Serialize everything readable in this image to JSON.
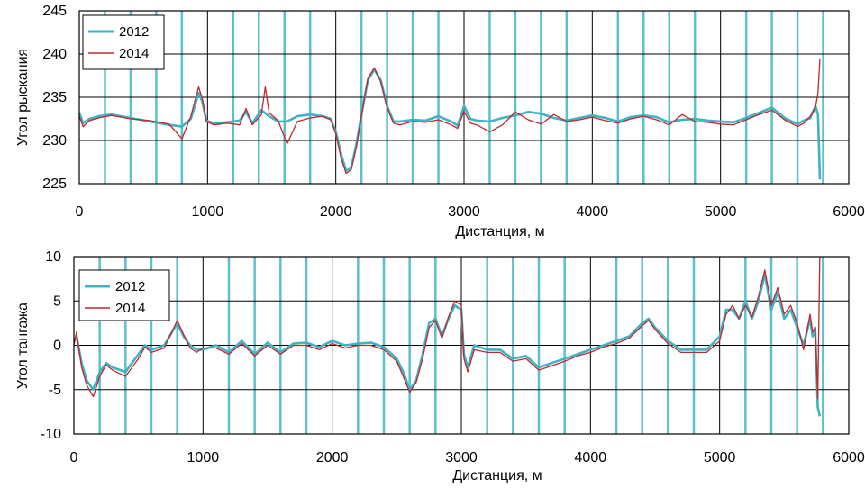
{
  "chart_data": [
    {
      "type": "line",
      "xlabel": "Дистанция, м",
      "ylabel": "Угол рыскания",
      "xlim": [
        0,
        6000
      ],
      "ylim": [
        225,
        245
      ],
      "xticks": [
        "0",
        "1000",
        "2000",
        "3000",
        "4000",
        "5000",
        "6000"
      ],
      "yticks": [
        "225",
        "230",
        "235",
        "240",
        "245"
      ],
      "grid": true,
      "legend_position": "top-left",
      "series": [
        {
          "name": "2012",
          "color": "#3fb3c3",
          "x": [
            0,
            30,
            80,
            150,
            250,
            400,
            550,
            700,
            800,
            870,
            930,
            960,
            990,
            1050,
            1150,
            1250,
            1300,
            1350,
            1420,
            1480,
            1550,
            1620,
            1700,
            1800,
            1900,
            1960,
            2000,
            2040,
            2080,
            2120,
            2160,
            2200,
            2250,
            2300,
            2350,
            2400,
            2450,
            2500,
            2600,
            2700,
            2800,
            2900,
            2950,
            3000,
            3050,
            3100,
            3200,
            3300,
            3400,
            3500,
            3600,
            3700,
            3800,
            3900,
            4000,
            4100,
            4200,
            4300,
            4400,
            4500,
            4600,
            4700,
            4800,
            4900,
            5000,
            5100,
            5200,
            5300,
            5400,
            5500,
            5600,
            5650,
            5700,
            5740,
            5760,
            5775
          ],
          "values": [
            233.2,
            232,
            232.5,
            232.8,
            233,
            232.6,
            232.2,
            231.8,
            231.6,
            232.5,
            235.5,
            234.5,
            232.3,
            232,
            232.1,
            232.3,
            233.3,
            232,
            233.5,
            232.8,
            232.2,
            232.2,
            232.8,
            233,
            232.8,
            232.5,
            231,
            228.5,
            226.5,
            226.8,
            229.5,
            233,
            237,
            238.2,
            237,
            234,
            232.2,
            232.2,
            232.4,
            232.3,
            232.8,
            232.2,
            231.7,
            234,
            232.5,
            232.3,
            232.2,
            232.6,
            232.9,
            233.3,
            233.1,
            232.6,
            232.3,
            232.6,
            232.9,
            232.6,
            232.2,
            232.7,
            232.9,
            232.7,
            232.1,
            232.4,
            232.5,
            232.3,
            232.2,
            232.1,
            232.6,
            233.2,
            233.8,
            232.6,
            231.9,
            232.3,
            232.6,
            234,
            233,
            225.5
          ]
        },
        {
          "name": "2014",
          "color": "#c0282d",
          "x": [
            0,
            30,
            80,
            150,
            250,
            400,
            550,
            700,
            800,
            870,
            930,
            960,
            990,
            1050,
            1150,
            1250,
            1300,
            1350,
            1420,
            1450,
            1480,
            1550,
            1620,
            1700,
            1800,
            1900,
            1960,
            2000,
            2040,
            2080,
            2120,
            2160,
            2200,
            2250,
            2300,
            2350,
            2400,
            2450,
            2500,
            2600,
            2700,
            2800,
            2900,
            2950,
            3000,
            3050,
            3100,
            3200,
            3300,
            3400,
            3500,
            3600,
            3700,
            3800,
            3900,
            4000,
            4100,
            4200,
            4300,
            4400,
            4500,
            4600,
            4700,
            4800,
            4900,
            5000,
            5100,
            5200,
            5300,
            5400,
            5500,
            5600,
            5650,
            5700,
            5740,
            5760,
            5775
          ],
          "values": [
            232.8,
            231.6,
            232.3,
            232.6,
            232.9,
            232.5,
            232.3,
            231.9,
            230.2,
            232.8,
            236.2,
            234.8,
            232.2,
            231.8,
            232,
            231.8,
            233.7,
            231.8,
            233,
            236.2,
            233.2,
            232.3,
            229.6,
            232.2,
            232.6,
            232.8,
            232.4,
            230.8,
            228,
            226.2,
            226.6,
            229.2,
            232.8,
            237.2,
            238.4,
            236.8,
            233.8,
            232,
            231.8,
            232.2,
            232.1,
            232.4,
            231.8,
            231.4,
            233.4,
            232,
            231.8,
            231,
            231.8,
            233.3,
            232.4,
            231.9,
            233,
            232.2,
            232.4,
            232.7,
            232.3,
            232,
            232.5,
            232.8,
            232.4,
            231.8,
            233,
            232.2,
            232.1,
            231.9,
            231.8,
            232.4,
            233,
            233.5,
            232.4,
            231.6,
            232,
            232.8,
            233.8,
            235.5,
            239.5
          ]
        }
      ]
    },
    {
      "type": "line",
      "xlabel": "Дистанция, м",
      "ylabel": "Угол тангажа",
      "xlim": [
        0,
        6000
      ],
      "ylim": [
        -10,
        10
      ],
      "xticks": [
        "0",
        "1000",
        "2000",
        "3000",
        "4000",
        "5000",
        "6000"
      ],
      "yticks": [
        "-10",
        "-5",
        "0",
        "5",
        "10"
      ],
      "grid": true,
      "legend_position": "top-left",
      "series": [
        {
          "name": "2012",
          "color": "#3fb3c3",
          "x": [
            0,
            20,
            60,
            100,
            150,
            200,
            250,
            300,
            400,
            500,
            550,
            600,
            700,
            800,
            850,
            900,
            950,
            1000,
            1100,
            1200,
            1300,
            1400,
            1500,
            1600,
            1700,
            1800,
            1900,
            2000,
            2100,
            2200,
            2300,
            2400,
            2500,
            2550,
            2600,
            2650,
            2700,
            2750,
            2800,
            2850,
            2900,
            2950,
            3000,
            3020,
            3050,
            3100,
            3200,
            3300,
            3400,
            3500,
            3600,
            3700,
            3800,
            3900,
            4000,
            4100,
            4200,
            4300,
            4400,
            4450,
            4500,
            4600,
            4700,
            4800,
            4900,
            5000,
            5050,
            5100,
            5150,
            5200,
            5250,
            5300,
            5350,
            5400,
            5450,
            5500,
            5550,
            5600,
            5650,
            5700,
            5720,
            5740,
            5760,
            5775
          ],
          "values": [
            0.5,
            1,
            -2,
            -4,
            -5,
            -3,
            -2,
            -2.5,
            -3,
            -1,
            0,
            -0.5,
            0,
            2.5,
            1,
            0,
            -0.5,
            -0.5,
            0,
            -0.8,
            0.5,
            -1,
            0.3,
            -0.8,
            0.2,
            0.3,
            -0.2,
            0.5,
            0,
            0.2,
            0.3,
            -0.2,
            -1.5,
            -3,
            -5,
            -4,
            -1,
            2.5,
            3,
            1,
            3,
            4.5,
            4,
            -1,
            -2.5,
            0,
            -0.5,
            -0.5,
            -1.5,
            -1.2,
            -2.5,
            -2,
            -1.5,
            -1,
            -0.5,
            0,
            0.5,
            1,
            2.5,
            3,
            2,
            0.5,
            -0.5,
            -0.5,
            -0.5,
            1,
            4,
            4,
            3,
            5,
            3,
            5,
            8,
            4,
            6,
            3,
            4,
            2,
            0,
            3,
            1,
            2,
            -7,
            -8
          ]
        },
        {
          "name": "2014",
          "color": "#c0282d",
          "x": [
            0,
            20,
            60,
            100,
            150,
            200,
            250,
            300,
            400,
            500,
            550,
            600,
            700,
            800,
            850,
            900,
            950,
            1000,
            1100,
            1200,
            1300,
            1400,
            1500,
            1600,
            1700,
            1800,
            1900,
            2000,
            2100,
            2200,
            2300,
            2400,
            2500,
            2550,
            2600,
            2650,
            2700,
            2750,
            2800,
            2850,
            2900,
            2950,
            3000,
            3020,
            3050,
            3100,
            3200,
            3300,
            3400,
            3500,
            3600,
            3700,
            3800,
            3900,
            4000,
            4100,
            4200,
            4300,
            4400,
            4450,
            4500,
            4600,
            4700,
            4800,
            4900,
            5000,
            5050,
            5100,
            5150,
            5200,
            5250,
            5300,
            5350,
            5400,
            5450,
            5500,
            5550,
            5600,
            5650,
            5700,
            5720,
            5740,
            5760,
            5775
          ],
          "values": [
            0,
            1.5,
            -2.5,
            -4.5,
            -5.8,
            -3.5,
            -2.2,
            -2.8,
            -3.5,
            -1.5,
            -0.2,
            -0.8,
            -0.3,
            2.8,
            1.2,
            -0.3,
            -0.8,
            -0.3,
            -0.3,
            -1,
            0.2,
            -1.2,
            0,
            -1,
            0,
            0,
            -0.5,
            0.2,
            -0.3,
            0,
            0,
            -0.5,
            -1.8,
            -3.5,
            -5.3,
            -4.2,
            -1.5,
            2,
            2.8,
            0.8,
            3.2,
            5,
            4.5,
            -1.5,
            -3,
            -0.5,
            -0.8,
            -0.8,
            -1.8,
            -1.5,
            -2.8,
            -2.3,
            -1.8,
            -1.2,
            -0.8,
            -0.2,
            0.2,
            0.8,
            2.2,
            2.8,
            1.8,
            0.2,
            -0.8,
            -0.8,
            -0.8,
            0.5,
            3.5,
            4.5,
            3,
            4.5,
            3.2,
            5.5,
            8.5,
            4.5,
            6.5,
            3.5,
            4.5,
            2.5,
            -0.5,
            3.5,
            1.5,
            2,
            -6,
            10
          ]
        }
      ]
    }
  ]
}
